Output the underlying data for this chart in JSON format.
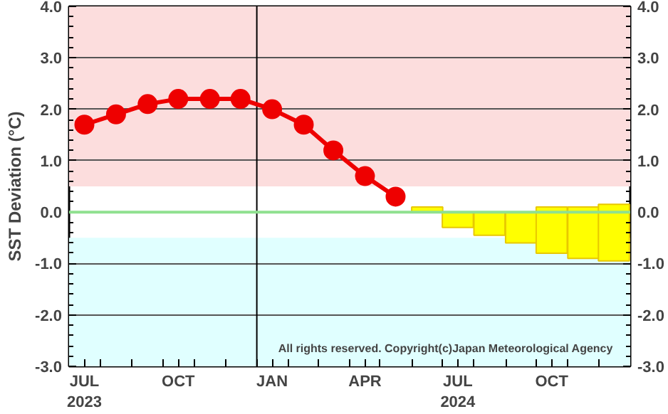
{
  "chart_data": {
    "type": "line",
    "ylabel": "SST Deviation (°C)",
    "x": [
      "2023-07-16",
      "2023-08-16",
      "2023-09-16",
      "2023-10-16",
      "2023-11-16",
      "2023-12-16",
      "2024-01-16",
      "2024-02-16",
      "2024-03-16",
      "2024-04-16",
      "2024-05-16"
    ],
    "series": [
      {
        "color": "#ee0000",
        "marker": "circle",
        "values": [
          1.7,
          1.9,
          2.1,
          2.2,
          2.2,
          2.2,
          2.0,
          1.7,
          1.2,
          0.7,
          0.3
        ]
      },
      {
        "type": "bar",
        "color": "#ffff00",
        "x": [
          "2024-06-16",
          "2024-07-16",
          "2024-08-16",
          "2024-09-16",
          "2024-10-16",
          "2024-11-16",
          "2024-12-16"
        ],
        "base": [
          0.0,
          -0.3,
          -0.45,
          -0.6,
          -0.8,
          -0.9,
          -0.95
        ],
        "values": [
          0.1,
          0.3,
          0.45,
          0.6,
          0.9,
          1.0,
          1.1
        ]
      }
    ],
    "xlim": [
      "2023-07-01",
      "2025-01-01"
    ],
    "xticks": [
      {
        "value": "2023-07-16",
        "label": "JUL\n2023"
      },
      {
        "value": "2023-10-16",
        "label": "OCT"
      },
      {
        "value": "2024-01-16",
        "label": "JAN"
      },
      {
        "value": "2024-04-16",
        "label": "APR"
      },
      {
        "value": "2024-07-16",
        "label": "JUL\n2024"
      },
      {
        "value": "2024-10-16",
        "label": "OCT"
      },
      {
        "value": "2023-08-01",
        "label": null
      },
      {
        "value": "2023-09-01",
        "label": null
      },
      {
        "value": "2023-10-01",
        "label": null
      },
      {
        "value": "2023-11-01",
        "label": null
      },
      {
        "value": "2023-12-01",
        "label": null
      },
      {
        "value": "2024-01-01",
        "label": null
      },
      {
        "value": "2024-02-01",
        "label": null
      },
      {
        "value": "2024-03-01",
        "label": null
      },
      {
        "value": "2024-04-01",
        "label": null
      },
      {
        "value": "2024-05-01",
        "label": null
      },
      {
        "value": "2024-06-01",
        "label": null
      },
      {
        "value": "2024-07-01",
        "label": null
      },
      {
        "value": "2024-08-01",
        "label": null
      },
      {
        "value": "2024-09-01",
        "label": null
      },
      {
        "value": "2024-10-01",
        "label": null
      },
      {
        "value": "2024-11-01",
        "label": null
      },
      {
        "value": "2024-12-01",
        "label": null
      }
    ],
    "ylim": [
      -3,
      4
    ],
    "yticks": [
      {
        "value": -3,
        "label": "-3.0"
      },
      {
        "value": -2,
        "label": "-2.0"
      },
      {
        "value": -1,
        "label": "-1.0"
      },
      {
        "value": 0,
        "label": "0.0"
      },
      {
        "value": 1,
        "label": "1.0"
      },
      {
        "value": 2,
        "label": "2.0"
      },
      {
        "value": 3,
        "label": "3.0"
      },
      {
        "value": 4,
        "label": "4.0"
      }
    ],
    "y2lim": [
      -3,
      4
    ],
    "y2ticks": [
      {
        "value": -3,
        "label": "-3.0"
      },
      {
        "value": -2,
        "label": "-2.0"
      },
      {
        "value": -1,
        "label": "-1.0"
      },
      {
        "value": 0,
        "label": "0.0"
      },
      {
        "value": 1,
        "label": "1.0"
      },
      {
        "value": 2,
        "label": "2.0"
      },
      {
        "value": 3,
        "label": "3.0"
      },
      {
        "value": 4,
        "label": "4.0"
      }
    ],
    "bands": [
      {
        "axis": "y",
        "from": 0.5,
        "to": 4,
        "color": "#fcdddd"
      },
      {
        "axis": "y",
        "from": -3,
        "to": -0.5,
        "color": "#e0ffff"
      }
    ],
    "ref_lines": [
      {
        "axis": "y",
        "value": 0,
        "color": "#8fe08f"
      },
      {
        "axis": "x",
        "value": "2024-01-01",
        "color": "#000000"
      }
    ],
    "grid": "y",
    "annotations": [
      "All rights reserved. Copyright(c)Japan Meteorological Agency"
    ]
  }
}
